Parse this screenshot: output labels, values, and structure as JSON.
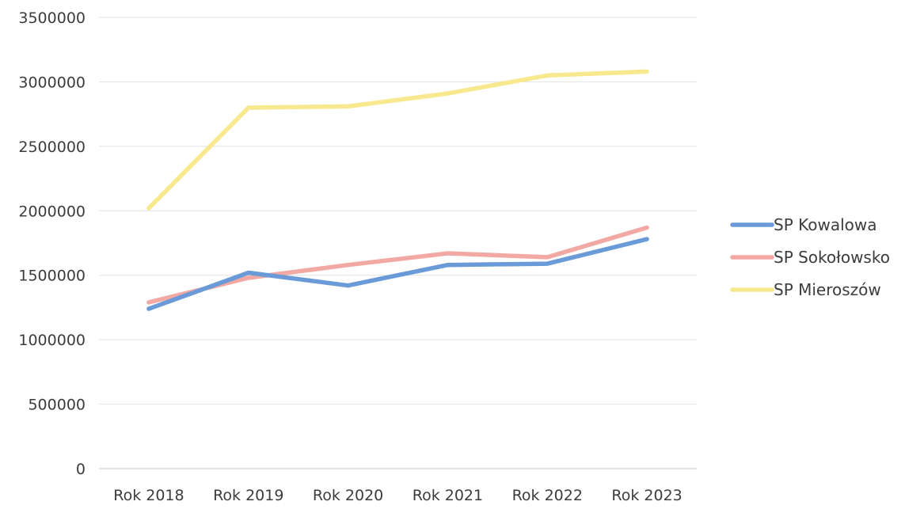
{
  "chart_data": {
    "type": "line",
    "title": "",
    "xlabel": "",
    "ylabel": "",
    "categories": [
      "Rok 2018",
      "Rok 2019",
      "Rok 2020",
      "Rok 2021",
      "Rok 2022",
      "Rok 2023"
    ],
    "ylim": [
      0,
      3500000
    ],
    "yticks": [
      0,
      500000,
      1000000,
      1500000,
      2000000,
      2500000,
      3000000,
      3500000
    ],
    "grid": true,
    "legend_position": "right",
    "series": [
      {
        "name": "SP Kowalowa",
        "color": "#6a9bd8",
        "values": [
          1240000,
          1520000,
          1420000,
          1580000,
          1590000,
          1780000
        ]
      },
      {
        "name": "SP Sokołowsko",
        "color": "#f2a9a4",
        "values": [
          1290000,
          1480000,
          1580000,
          1670000,
          1640000,
          1870000
        ]
      },
      {
        "name": "SP Mieroszów",
        "color": "#f8e88e",
        "values": [
          2020000,
          2800000,
          2810000,
          2910000,
          3050000,
          3080000
        ]
      }
    ]
  }
}
